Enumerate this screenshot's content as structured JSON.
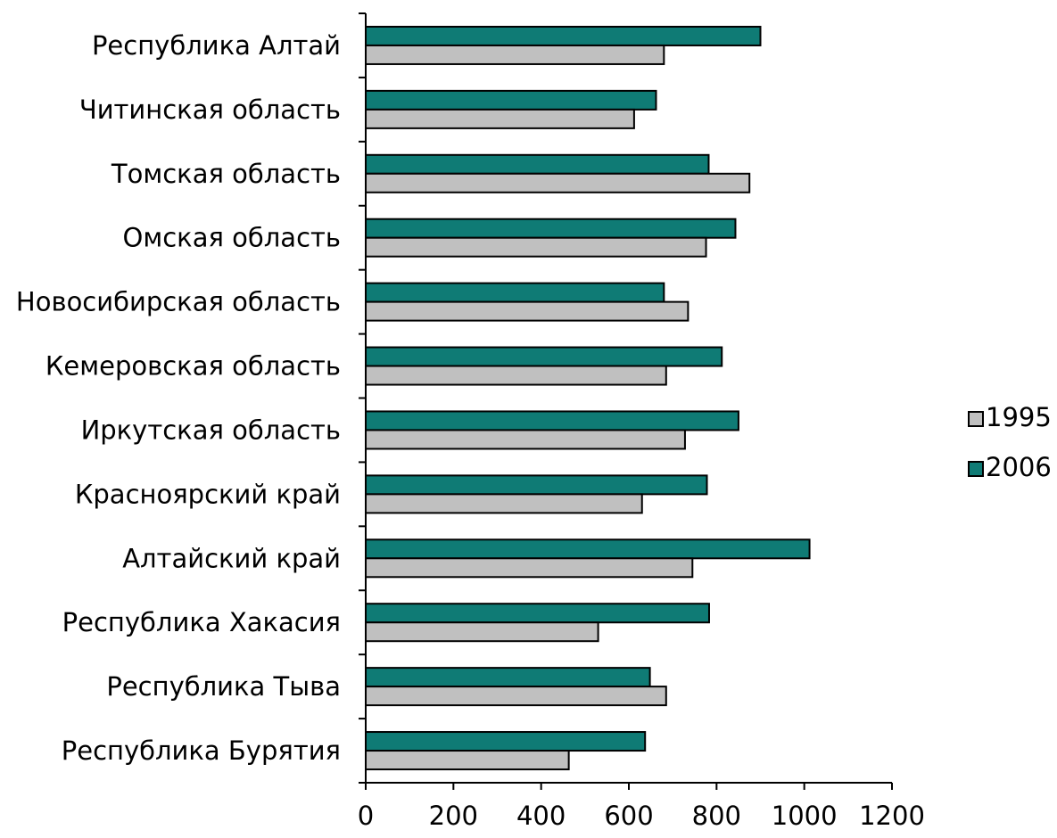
{
  "chart_data": {
    "type": "bar",
    "orientation": "horizontal",
    "categories": [
      "Республика Алтай",
      "Читинская область",
      "Томская область",
      "Омская область",
      "Новосибирская область",
      "Кемеровская область",
      "Иркутская область",
      "Красноярский край",
      "Алтайский край",
      "Республика Хакасия",
      "Республика Тыва",
      "Республика Бурятия"
    ],
    "series": [
      {
        "name": "2006",
        "color": "#0f7b75",
        "values": [
          900,
          662,
          782,
          843,
          680,
          812,
          850,
          778,
          1012,
          783,
          648,
          637
        ]
      },
      {
        "name": "1995",
        "color": "#c0c0c0",
        "values": [
          680,
          612,
          875,
          776,
          735,
          685,
          728,
          630,
          745,
          530,
          685,
          463
        ]
      }
    ],
    "xlim": [
      0,
      1200
    ],
    "xticks": [
      "0",
      "200",
      "400",
      "600",
      "800",
      "1000",
      "1200"
    ],
    "legend": {
      "position": "right",
      "entries": [
        {
          "label": "1995",
          "color": "#c0c0c0"
        },
        {
          "label": "2006",
          "color": "#0f7b75"
        }
      ]
    },
    "grid": false
  }
}
